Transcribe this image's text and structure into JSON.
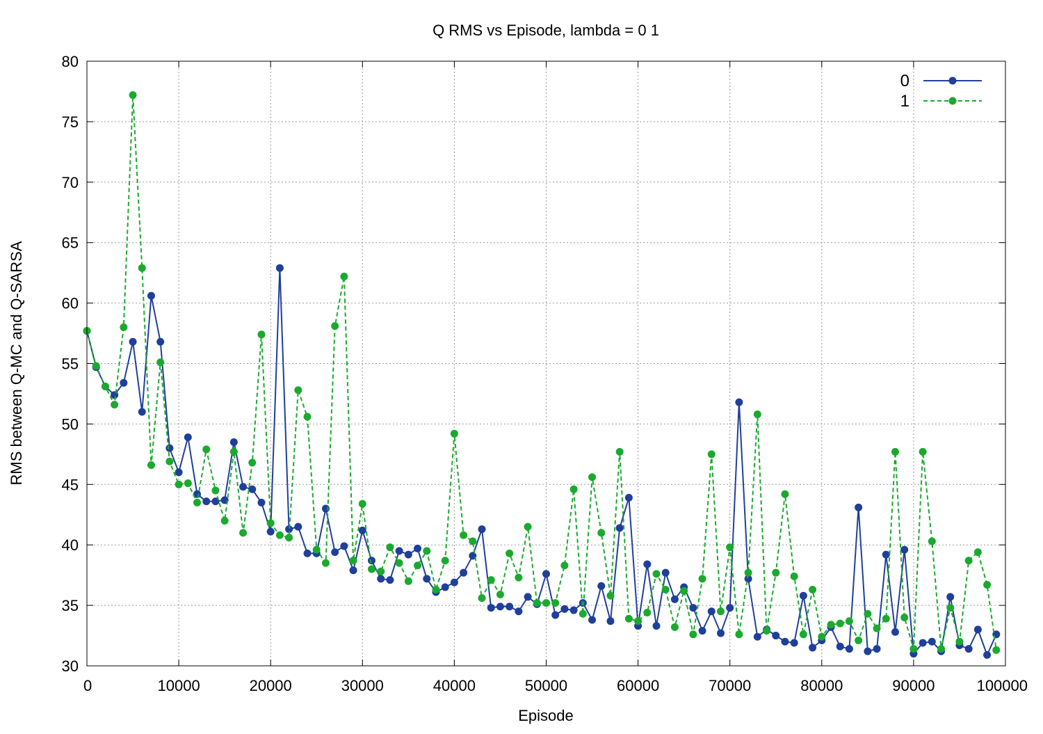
{
  "chart_data": {
    "type": "line",
    "title": "Q RMS vs Episode, lambda = 0  1",
    "xlabel": "Episode",
    "ylabel": "RMS between Q-MC and Q-SARSA",
    "xlim": [
      0,
      100000
    ],
    "ylim": [
      30,
      80
    ],
    "xticks": [
      0,
      10000,
      20000,
      30000,
      40000,
      50000,
      60000,
      70000,
      80000,
      90000,
      100000
    ],
    "yticks": [
      30,
      35,
      40,
      45,
      50,
      55,
      60,
      65,
      70,
      75,
      80
    ],
    "grid": true,
    "legend_position": "top-right",
    "x": [
      0,
      1000,
      2000,
      3000,
      4000,
      5000,
      6000,
      7000,
      8000,
      9000,
      10000,
      11000,
      12000,
      13000,
      14000,
      15000,
      16000,
      17000,
      18000,
      19000,
      20000,
      21000,
      22000,
      23000,
      24000,
      25000,
      26000,
      27000,
      28000,
      29000,
      30000,
      31000,
      32000,
      33000,
      34000,
      35000,
      36000,
      37000,
      38000,
      39000,
      40000,
      41000,
      42000,
      43000,
      44000,
      45000,
      46000,
      47000,
      48000,
      49000,
      50000,
      51000,
      52000,
      53000,
      54000,
      55000,
      56000,
      57000,
      58000,
      59000,
      60000,
      61000,
      62000,
      63000,
      64000,
      65000,
      66000,
      67000,
      68000,
      69000,
      70000,
      71000,
      72000,
      73000,
      74000,
      75000,
      76000,
      77000,
      78000,
      79000,
      80000,
      81000,
      82000,
      83000,
      84000,
      85000,
      86000,
      87000,
      88000,
      89000,
      90000,
      91000,
      92000,
      93000,
      94000,
      95000,
      96000,
      97000,
      98000,
      99000
    ],
    "series": [
      {
        "name": "0",
        "color": "#1f3f9a",
        "dashed": false,
        "values": [
          57.7,
          54.7,
          53.1,
          52.4,
          53.4,
          56.8,
          51.0,
          60.6,
          56.8,
          48.0,
          46.0,
          48.9,
          44.2,
          43.6,
          43.6,
          43.7,
          48.5,
          44.8,
          44.6,
          43.5,
          41.1,
          62.9,
          41.3,
          41.5,
          39.3,
          39.3,
          43.0,
          39.4,
          39.9,
          37.9,
          41.2,
          38.7,
          37.2,
          37.1,
          39.5,
          39.2,
          39.7,
          37.2,
          36.1,
          36.5,
          36.9,
          37.7,
          39.1,
          41.3,
          34.8,
          34.9,
          34.9,
          34.5,
          35.7,
          35.1,
          37.6,
          34.2,
          34.7,
          34.6,
          35.2,
          33.8,
          36.6,
          33.7,
          41.4,
          43.9,
          33.3,
          38.4,
          33.3,
          37.7,
          35.5,
          36.5,
          34.8,
          32.9,
          34.5,
          32.7,
          34.8,
          51.8,
          37.2,
          32.4,
          33.0,
          32.5,
          32.0,
          31.9,
          35.8,
          31.5,
          32.1,
          33.2,
          31.6,
          31.4,
          43.1,
          31.2,
          31.4,
          39.2,
          32.8,
          39.6,
          31.0,
          31.9,
          32.0,
          31.2,
          35.7,
          31.7,
          31.4,
          33.0,
          30.9,
          32.6
        ]
      },
      {
        "name": "1",
        "color": "#1aaa2e",
        "dashed": true,
        "values": [
          57.7,
          54.8,
          53.1,
          51.6,
          58.0,
          77.2,
          62.9,
          46.6,
          55.1,
          46.9,
          45.0,
          45.1,
          43.5,
          47.9,
          44.5,
          42.0,
          47.7,
          41.0,
          46.8,
          57.4,
          41.8,
          40.8,
          40.6,
          52.8,
          50.6,
          39.6,
          38.5,
          58.1,
          62.2,
          38.7,
          43.4,
          38.0,
          37.8,
          39.8,
          38.5,
          37.0,
          38.3,
          39.5,
          36.3,
          38.7,
          49.2,
          40.8,
          40.3,
          35.6,
          37.1,
          35.9,
          39.3,
          37.3,
          41.5,
          35.2,
          35.2,
          35.2,
          38.3,
          44.6,
          34.3,
          45.6,
          41.0,
          35.8,
          47.7,
          33.9,
          33.7,
          34.4,
          37.6,
          36.3,
          33.2,
          36.2,
          32.6,
          37.2,
          47.5,
          34.5,
          39.8,
          32.6,
          37.7,
          50.8,
          32.9,
          37.7,
          44.2,
          37.4,
          32.6,
          36.3,
          32.4,
          33.4,
          33.5,
          33.7,
          32.1,
          34.3,
          33.1,
          33.9,
          47.7,
          34.0,
          31.4,
          47.7,
          40.3,
          31.4,
          34.8,
          32.0,
          38.7,
          39.4,
          36.7,
          31.3
        ]
      }
    ]
  }
}
